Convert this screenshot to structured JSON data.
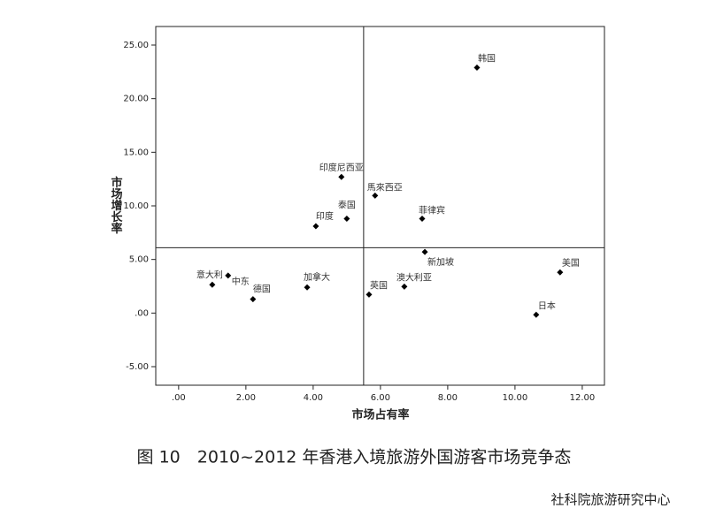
{
  "chart_data": {
    "type": "scatter",
    "x_label": "市场占有率",
    "y_label": "市场增长率",
    "labels": [
      "韩国",
      "印度尼西亚",
      "馬來西亞",
      "泰国",
      "菲律宾",
      "印度",
      "新加坡",
      "意大利",
      "中东",
      "德国",
      "加拿大",
      "英国",
      "澳大利亚",
      "美国",
      "日本"
    ],
    "x": [
      8.87,
      4.84,
      5.84,
      5.0,
      7.24,
      4.08,
      7.32,
      1.0,
      1.47,
      2.21,
      3.82,
      5.66,
      6.71,
      11.34,
      10.63
    ],
    "values": [
      22.9,
      12.7,
      10.96,
      8.8,
      8.8,
      8.1,
      5.7,
      2.64,
      3.5,
      1.3,
      2.4,
      1.73,
      2.47,
      3.8,
      -0.16
    ],
    "color": "#000000",
    "xlim": [
      -0.68,
      12.66
    ],
    "ylim": [
      -6.73,
      26.73
    ],
    "xticks": [
      {
        "value": 0,
        "label": ".00"
      },
      {
        "value": 2,
        "label": "2.00"
      },
      {
        "value": 4,
        "label": "4.00"
      },
      {
        "value": 6,
        "label": "6.00"
      },
      {
        "value": 8,
        "label": "8.00"
      },
      {
        "value": 10,
        "label": "10.00"
      },
      {
        "value": 12,
        "label": "12.00"
      }
    ],
    "yticks": [
      {
        "value": -5,
        "label": "-5.00"
      },
      {
        "value": 0,
        "label": ".00"
      },
      {
        "value": 5,
        "label": "5.00"
      },
      {
        "value": 10,
        "label": "10.00"
      },
      {
        "value": 15,
        "label": "15.00"
      },
      {
        "value": 20,
        "label": "20.00"
      },
      {
        "value": 25,
        "label": "25.00"
      }
    ],
    "reference_lines": {
      "x": 5.5,
      "y": 6.1
    },
    "caption": "图 10　2010~2012 年香港入境旅游外国游客市场竞争态",
    "watermark": "社科院旅游研究中心"
  }
}
